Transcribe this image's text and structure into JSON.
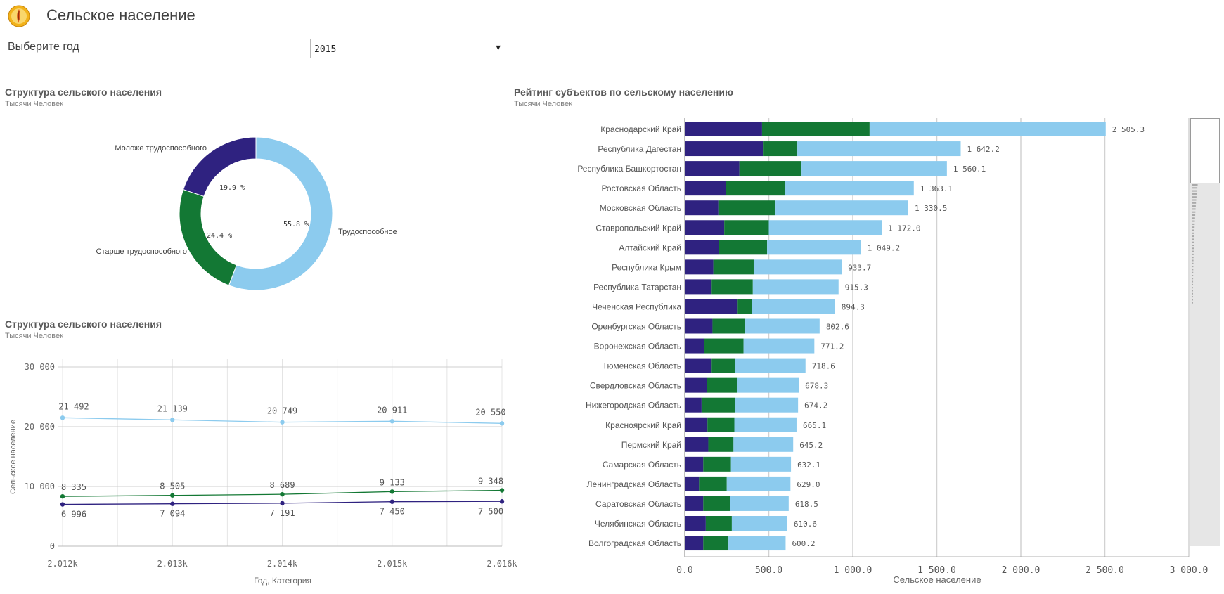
{
  "header": {
    "title": "Сельское население",
    "logo_icon": "app-logo-icon"
  },
  "filter": {
    "label": "Выберите год",
    "selected": "2015",
    "arrow": "▼"
  },
  "donut": {
    "title": "Структура сельского населения",
    "subtitle": "Тысячи Человек",
    "segments": [
      {
        "name": "Трудоспособное",
        "pct_label": "55.8 %",
        "value": 55.8,
        "color": "#8ccbee"
      },
      {
        "name": "Старше трудоспособного",
        "pct_label": "24.4 %",
        "value": 24.4,
        "color": "#137834"
      },
      {
        "name": "Моложе трудоспособного",
        "pct_label": "19.9 %",
        "value": 19.9,
        "color": "#2f2280"
      }
    ]
  },
  "line": {
    "title": "Структура сельского населения",
    "subtitle": "Тысячи Человек",
    "ylabel": "Сельское население",
    "xlabel": "Год, Категория",
    "yticks": [
      "30 000",
      "20 000",
      "10 000",
      "0"
    ],
    "categories": [
      "2.012k",
      "2.013k",
      "2.014k",
      "2.015k",
      "2.016k"
    ]
  },
  "bars": {
    "title": "Рейтинг субъектов по сельскому населению",
    "subtitle": "Тысячи Человек",
    "xlabel": "Сельское население",
    "xticks": [
      "0.0",
      "500.0",
      "1 000.0",
      "1 500.0",
      "2 000.0",
      "2 500.0",
      "3 000.0"
    ],
    "regions": [
      "Краснодарский Край",
      "Республика Дагестан",
      "Республика Башкортостан",
      "Ростовская Область",
      "Московская Область",
      "Ставропольский Край",
      "Алтайский Край",
      "Республика Крым",
      "Республика Татарстан",
      "Чеченская Республика",
      "Оренбургская Область",
      "Воронежская Область",
      "Тюменская Область",
      "Свердловская Область",
      "Нижегородская Область",
      "Красноярский Край",
      "Пермский Край",
      "Самарская Область",
      "Ленинградская Область",
      "Саратовская Область",
      "Челябинская Область",
      "Волгоградская Область"
    ],
    "total_labels": [
      "2 505.3",
      "1 642.2",
      "1 560.1",
      "1 363.1",
      "1 330.5",
      "1 172.0",
      "1 049.2",
      "933.7",
      "915.3",
      "894.3",
      "802.6",
      "771.2",
      "718.6",
      "678.3",
      "674.2",
      "665.1",
      "645.2",
      "632.1",
      "629.0",
      "618.5",
      "610.6",
      "600.2"
    ]
  },
  "chart_data": [
    {
      "type": "pie",
      "title": "Структура сельского населения",
      "subtitle": "Тысячи Человек",
      "labels": [
        "Трудоспособное",
        "Старше трудоспособного",
        "Моложе трудоспособного"
      ],
      "values": [
        55.8,
        24.4,
        19.9
      ],
      "unit": "%",
      "colors": [
        "#8ccbee",
        "#137834",
        "#2f2280"
      ]
    },
    {
      "type": "line",
      "title": "Структура сельского населения",
      "subtitle": "Тысячи Человек",
      "xlabel": "Год, Категория",
      "ylabel": "Сельское население",
      "ylim": [
        0,
        30000
      ],
      "grid": true,
      "categories": [
        "2.012k",
        "2.013k",
        "2.014k",
        "2.015k",
        "2.016k"
      ],
      "series": [
        {
          "values": [
            21492,
            21139,
            20749,
            20911,
            20550
          ],
          "labels": [
            "21 492",
            "21 139",
            "20 749",
            "20 911",
            "20 550"
          ],
          "color": "#8ccbee"
        },
        {
          "values": [
            8335,
            8505,
            8689,
            9133,
            9348
          ],
          "labels": [
            "8 335",
            "8 505",
            "8 689",
            "9 133",
            "9 348"
          ],
          "color": "#137834"
        },
        {
          "values": [
            6996,
            7094,
            7191,
            7450,
            7500
          ],
          "labels": [
            "6 996",
            "7 094",
            "7 191",
            "7 450",
            "7 500"
          ],
          "color": "#2f2280"
        }
      ]
    },
    {
      "type": "bar",
      "orientation": "horizontal",
      "stacked": true,
      "title": "Рейтинг субъектов по сельскому населению",
      "subtitle": "Тысячи Человек",
      "xlabel": "Сельское население",
      "xlim": [
        0,
        3000
      ],
      "grid": true,
      "series": [
        {
          "color": "#2f2280",
          "values": [
            460,
            465,
            325,
            245,
            200,
            235,
            205,
            170,
            160,
            315,
            165,
            115,
            160,
            130,
            100,
            135,
            140,
            110,
            85,
            110,
            125,
            110
          ]
        },
        {
          "color": "#137834",
          "values": [
            640,
            205,
            370,
            350,
            340,
            265,
            285,
            240,
            245,
            85,
            195,
            235,
            140,
            180,
            200,
            160,
            150,
            165,
            165,
            160,
            155,
            150
          ]
        },
        {
          "color": "#8ccbee",
          "values": [
            1405.3,
            972.2,
            865.1,
            768.1,
            790.5,
            672.0,
            559.2,
            523.7,
            510.3,
            494.3,
            442.6,
            421.2,
            418.6,
            368.3,
            374.2,
            370.1,
            355.2,
            357.1,
            379.0,
            348.5,
            330.6,
            340.2
          ]
        }
      ]
    }
  ]
}
